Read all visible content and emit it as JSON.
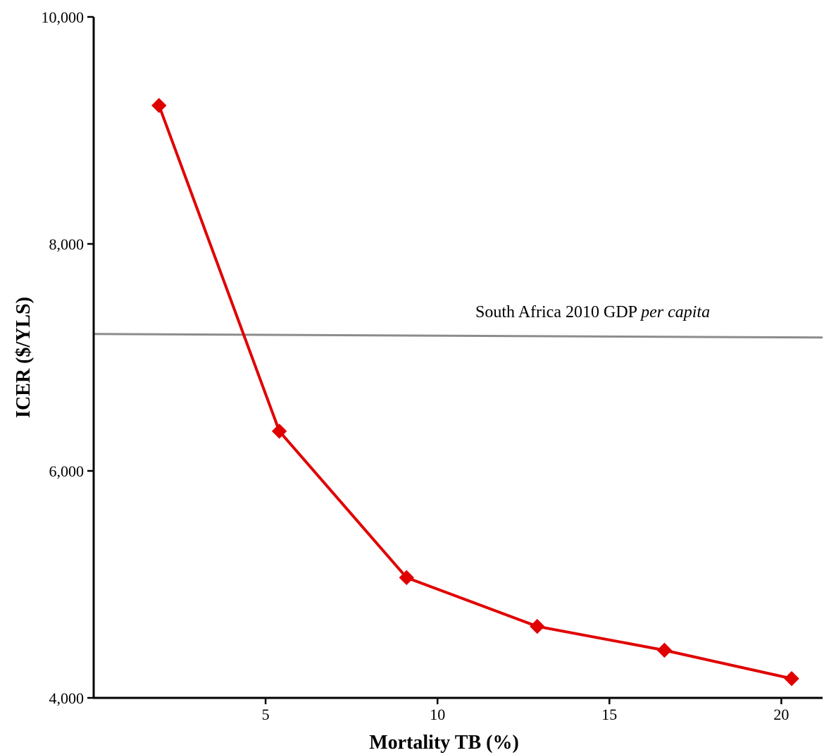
{
  "chart_data": {
    "type": "line",
    "title": "",
    "xlabel": "Mortality TB (%)",
    "ylabel": "ICER ($/YLS)",
    "xlim": [
      0,
      21.2
    ],
    "ylim": [
      4000,
      10000
    ],
    "x_ticks": [
      5,
      10,
      15,
      20
    ],
    "x_tick_labels": [
      "5",
      "10",
      "15",
      "20"
    ],
    "y_ticks": [
      4000,
      6000,
      8000,
      10000
    ],
    "y_tick_labels": [
      "4,000",
      "6,000",
      "8,000",
      "10,000"
    ],
    "grid": false,
    "legend": "none",
    "series": [
      {
        "x": [
          1.9,
          5.4,
          9.1,
          12.9,
          16.6,
          20.3
        ],
        "y": [
          9220,
          6350,
          5060,
          4630,
          4420,
          4170
        ],
        "color": "#e00000",
        "marker": "diamond"
      }
    ],
    "reference_line": {
      "label_prefix": "South Africa 2010 GDP ",
      "label_italic": "per capita",
      "y": 7200,
      "color": "#8c8c8c"
    }
  }
}
